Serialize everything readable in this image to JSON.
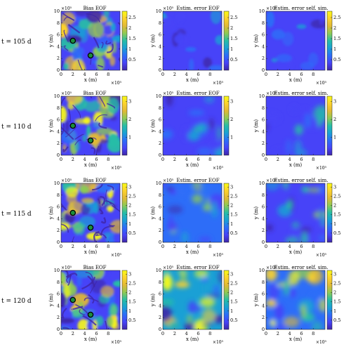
{
  "chart_data": [
    {
      "type": "heatmap",
      "row_label": "t = 105 d",
      "titles": [
        "Bias EOF",
        "Estim. error EOF",
        "Estim. error self. sim."
      ],
      "xlabel": "x (m)",
      "ylabel": "y (m)",
      "axis_exponent": "×10⁵",
      "x_ticks": [
        "0",
        "2",
        "4",
        "6",
        "8"
      ],
      "y_ticks": [
        "0",
        "2",
        "4",
        "6",
        "8",
        "10"
      ],
      "xlim": [
        0,
        1000000
      ],
      "ylim": [
        0,
        1000000
      ],
      "colorbar": {
        "range": [
          0,
          2.8
        ],
        "ticks": [
          "0.5",
          "1",
          "1.5",
          "2",
          "2.5"
        ]
      },
      "markers": [
        {
          "x": 200000,
          "y": 500000
        },
        {
          "x": 500000,
          "y": 250000
        }
      ]
    },
    {
      "type": "heatmap",
      "row_label": "t = 110 d",
      "titles": [
        "Bias EOF",
        "Estim. error EOF",
        "Estim. error self. sim."
      ],
      "xlabel": "x (m)",
      "ylabel": "y (m)",
      "axis_exponent": "×10⁵",
      "x_ticks": [
        "0",
        "2",
        "4",
        "6",
        "8"
      ],
      "y_ticks": [
        "0",
        "2",
        "4",
        "6",
        "8",
        "10"
      ],
      "xlim": [
        0,
        1000000
      ],
      "ylim": [
        0,
        1000000
      ],
      "colorbar": {
        "range": [
          0,
          3.3
        ],
        "ticks": [
          "1",
          "2",
          "3"
        ]
      },
      "markers": [
        {
          "x": 200000,
          "y": 500000
        },
        {
          "x": 500000,
          "y": 250000
        }
      ]
    },
    {
      "type": "heatmap",
      "row_label": "t = 115 d",
      "titles": [
        "Bias EOF",
        "Estim. error EOF",
        "Estim. error self. sim."
      ],
      "xlabel": "x (m)",
      "ylabel": "y (m)",
      "axis_exponent": "×10⁵",
      "x_ticks": [
        "0",
        "2",
        "4",
        "6",
        "8"
      ],
      "y_ticks": [
        "0",
        "2",
        "4",
        "6",
        "8",
        "10"
      ],
      "xlim": [
        0,
        1000000
      ],
      "ylim": [
        0,
        1000000
      ],
      "colorbar": {
        "range": [
          0,
          3.2
        ],
        "ticks": [
          "0.5",
          "1",
          "1.5",
          "2",
          "2.5",
          "3"
        ]
      },
      "markers": [
        {
          "x": 200000,
          "y": 500000
        },
        {
          "x": 500000,
          "y": 250000
        }
      ]
    },
    {
      "type": "heatmap",
      "row_label": "t = 120 d",
      "titles": [
        "Bias EOF",
        "Estim. error EOF",
        "Estim. error self. sim."
      ],
      "xlabel": "x (m)",
      "ylabel": "y (m)",
      "axis_exponent": "×10⁵",
      "x_ticks": [
        "0",
        "2",
        "4",
        "6",
        "8"
      ],
      "y_ticks": [
        "0",
        "2",
        "4",
        "6",
        "8",
        "10"
      ],
      "xlim": [
        0,
        1000000
      ],
      "ylim": [
        0,
        1000000
      ],
      "colorbar": {
        "range": [
          0,
          3.2
        ],
        "ticks": [
          "0.5",
          "1",
          "1.5",
          "2",
          "2.5",
          "3"
        ]
      },
      "markers": [
        {
          "x": 200000,
          "y": 500000
        },
        {
          "x": 500000,
          "y": 250000
        }
      ]
    }
  ],
  "colors": {
    "cmap": [
      "#3e26a8",
      "#4743f8",
      "#2d6df8",
      "#1aa0d5",
      "#26bda6",
      "#8dca54",
      "#e1b935",
      "#fcd22c",
      "#f9fb15"
    ],
    "marker_fill": "#1c8e3c",
    "axis": "#222222"
  }
}
